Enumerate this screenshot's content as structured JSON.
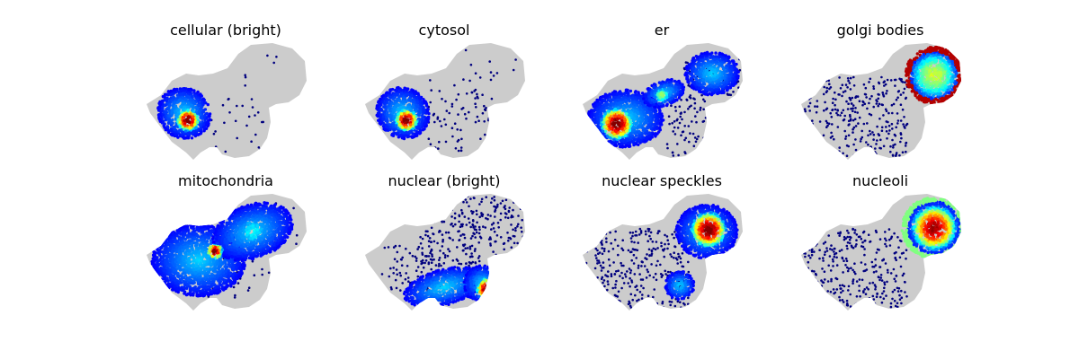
{
  "chart_data": [
    {
      "type": "scatter",
      "title": "cellular (bright)",
      "density": "left",
      "dots": "few",
      "colormap": "jet",
      "axes_visible": false
    },
    {
      "type": "scatter",
      "title": "cytosol",
      "density": "left",
      "dots": "mid",
      "colormap": "jet",
      "axes_visible": false
    },
    {
      "type": "scatter",
      "title": "er",
      "density": "wide",
      "dots": "right",
      "colormap": "jet",
      "axes_visible": false
    },
    {
      "type": "scatter",
      "title": "golgi bodies",
      "density": "ring",
      "dots": "left",
      "colormap": "jet",
      "axes_visible": false
    },
    {
      "type": "scatter",
      "title": "mitochondria",
      "density": "whole",
      "dots": "few",
      "colormap": "jet",
      "axes_visible": false
    },
    {
      "type": "scatter",
      "title": "nuclear (bright)",
      "density": "lower",
      "dots": "upper",
      "colormap": "jet",
      "axes_visible": false
    },
    {
      "type": "scatter",
      "title": "nuclear speckles",
      "density": "right",
      "dots": "left",
      "colormap": "jet",
      "axes_visible": false
    },
    {
      "type": "scatter",
      "title": "nucleoli",
      "density": "ring2",
      "dots": "left",
      "colormap": "jet",
      "axes_visible": false
    }
  ]
}
